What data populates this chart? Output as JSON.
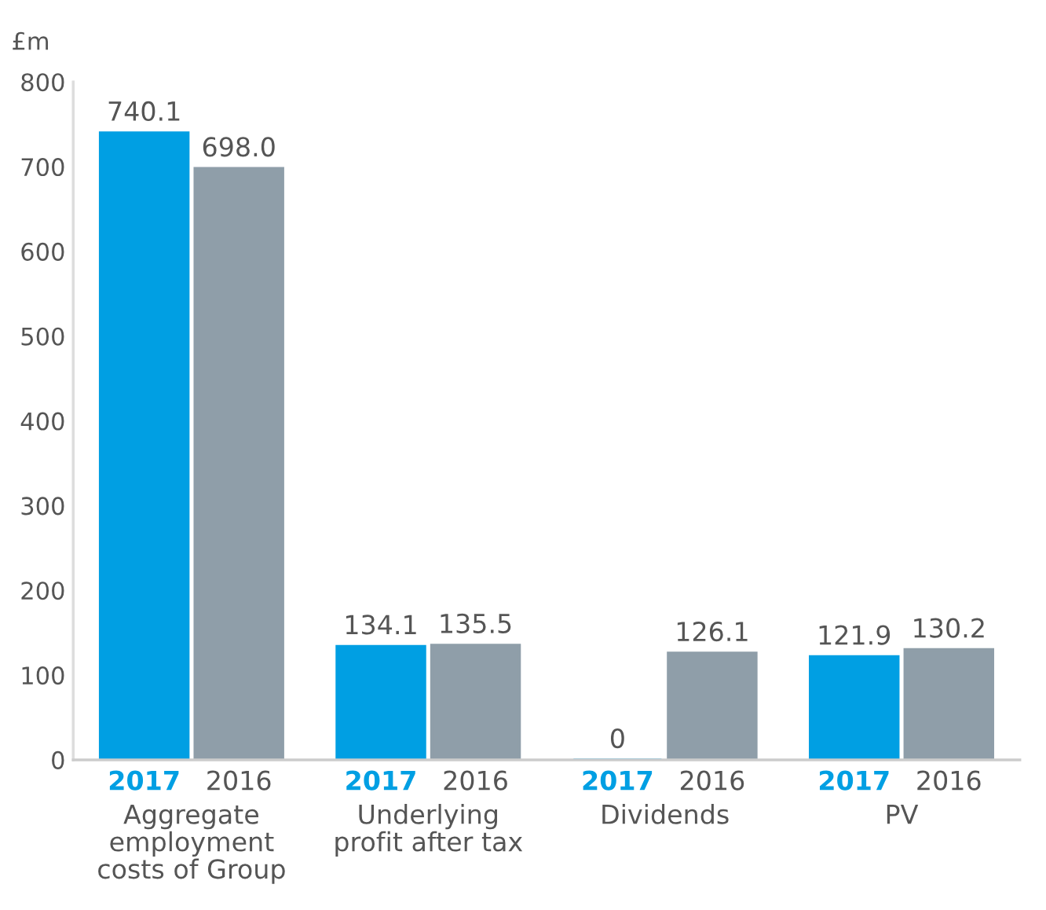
{
  "chart_data": {
    "type": "bar",
    "ylabel": "£m",
    "categories": [
      "Aggregate\nemployment\ncosts of Group",
      "Underlying\nprofit after tax",
      "Dividends",
      "PV"
    ],
    "series": [
      {
        "name": "2017",
        "color": "#009fe3",
        "values": [
          740.1,
          134.1,
          0,
          121.9
        ],
        "value_labels": [
          "740.1",
          "134.1",
          "0",
          "121.9"
        ]
      },
      {
        "name": "2016",
        "color": "#8f9ea9",
        "values": [
          698.0,
          135.5,
          126.1,
          130.2
        ],
        "value_labels": [
          "698.0",
          "135.5",
          "126.1",
          "130.2"
        ]
      }
    ],
    "ylim": [
      0,
      800
    ],
    "yticks": [
      0,
      100,
      200,
      300,
      400,
      500,
      600,
      700,
      800
    ],
    "grid": false,
    "legend": false
  }
}
